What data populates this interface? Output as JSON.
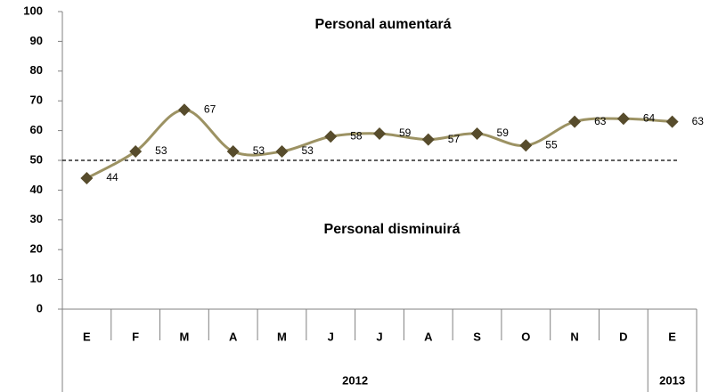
{
  "chart_data": {
    "type": "line",
    "categories": [
      "E",
      "F",
      "M",
      "A",
      "M",
      "J",
      "J",
      "A",
      "S",
      "O",
      "N",
      "D",
      "E"
    ],
    "groups": [
      {
        "label": "2012",
        "span": 12
      },
      {
        "label": "2013",
        "span": 1
      }
    ],
    "values": [
      44,
      53,
      67,
      53,
      53,
      58,
      59,
      57,
      59,
      55,
      63,
      64,
      63
    ],
    "color": "#9c9263",
    "marker_color": "#574c2c",
    "reference_line": 50,
    "annotations": [
      "Personal aumentará",
      "Personal disminuirá"
    ],
    "ylim": [
      0,
      100
    ],
    "yticks": [
      0,
      10,
      20,
      30,
      40,
      50,
      60,
      70,
      80,
      90,
      100
    ]
  }
}
